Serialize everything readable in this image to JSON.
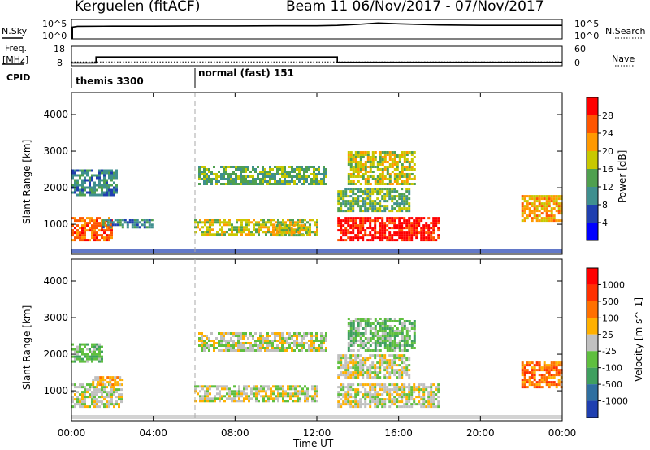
{
  "header": {
    "station": "Kerguelen (fitACF)",
    "beam_date": "Beam 11  06/Nov/2017 - 07/Nov/2017"
  },
  "panels": {
    "nsky": {
      "left_label": "N.Sky",
      "left_ticks": [
        "10^5",
        "10^0"
      ],
      "right_ticks": [
        "10^5",
        "10^0"
      ],
      "right_label": "N.Search"
    },
    "freq": {
      "left_label_1": "Freq.",
      "left_label_2": "[MHz]",
      "left_ticks": [
        "18",
        "8"
      ],
      "right_ticks": [
        "60",
        "0"
      ],
      "right_label": "Nave"
    },
    "cpid": {
      "label": "CPID",
      "segments": [
        {
          "text": "themis 3300",
          "start_hour": 0
        },
        {
          "text": "normal (fast) 151",
          "start_hour": 6
        }
      ]
    }
  },
  "chart_data": [
    {
      "type": "heatmap",
      "name": "power",
      "ylabel": "Slant Range [km]",
      "y_ticks": [
        "1000",
        "2000",
        "3000",
        "4000"
      ],
      "ylim_km": [
        180,
        4600
      ],
      "xlim_hours": [
        0,
        24
      ],
      "colorbar_label": "Power [dB]",
      "colorbar_ticks": [
        "4",
        "8",
        "12",
        "16",
        "20",
        "24",
        "28"
      ],
      "colorbar_colors": [
        "#0000ff",
        "#1f3fb0",
        "#3f8f8f",
        "#4fa04f",
        "#c8c800",
        "#ff9900",
        "#ff5500",
        "#ff0000"
      ],
      "features": [
        {
          "x0": 0.0,
          "x1": 2.0,
          "y0": 550,
          "y1": 1200,
          "level": 6
        },
        {
          "x0": 1.5,
          "x1": 4.0,
          "y0": 900,
          "y1": 1150,
          "level": 2
        },
        {
          "x0": 6.0,
          "x1": 12.0,
          "y0": 750,
          "y1": 1150,
          "level": 4
        },
        {
          "x0": 6.2,
          "x1": 12.5,
          "y0": 2100,
          "y1": 2600,
          "level": 3
        },
        {
          "x0": 0.0,
          "x1": 2.2,
          "y0": 1800,
          "y1": 2500,
          "level": 2
        },
        {
          "x0": 13.0,
          "x1": 18.0,
          "y0": 600,
          "y1": 1200,
          "level": 7
        },
        {
          "x0": 13.0,
          "x1": 16.5,
          "y0": 1400,
          "y1": 2000,
          "level": 3
        },
        {
          "x0": 13.5,
          "x1": 16.8,
          "y0": 2100,
          "y1": 3000,
          "level": 4
        },
        {
          "x0": 22.0,
          "x1": 24.0,
          "y0": 1100,
          "y1": 1800,
          "level": 5
        },
        {
          "x0": 10.0,
          "x1": 11.5,
          "y0": 700,
          "y1": 1000,
          "level": 4
        }
      ]
    },
    {
      "type": "heatmap",
      "name": "velocity",
      "ylabel": "Slant Range [km]",
      "y_ticks": [
        "1000",
        "2000",
        "3000",
        "4000"
      ],
      "ylim_km": [
        180,
        4600
      ],
      "xlim_hours": [
        0,
        24
      ],
      "xlabel": "Time UT",
      "x_ticks": [
        "00:00",
        "04:00",
        "08:00",
        "12:00",
        "16:00",
        "20:00",
        "00:00"
      ],
      "colorbar_label": "Velocity [m s^-1]",
      "colorbar_ticks": [
        "1000",
        "500",
        "100",
        "25",
        "-25",
        "-100",
        "-500",
        "-1000"
      ],
      "colorbar_colors": [
        "#1f3fb0",
        "#2f6fa0",
        "#3f9f5f",
        "#5fbf3f",
        "#c0c0c0",
        "#ffb000",
        "#ff7000",
        "#ff3000",
        "#ff0000"
      ],
      "features": [
        {
          "x0": 0.0,
          "x1": 2.5,
          "y0": 550,
          "y1": 1200,
          "level": 4
        },
        {
          "x0": 1.0,
          "x1": 2.5,
          "y0": 1200,
          "y1": 1400,
          "level": 5
        },
        {
          "x0": 6.0,
          "x1": 12.0,
          "y0": 750,
          "y1": 1150,
          "level": 4
        },
        {
          "x0": 6.2,
          "x1": 12.5,
          "y0": 2100,
          "y1": 2600,
          "level": 4
        },
        {
          "x0": 13.0,
          "x1": 18.0,
          "y0": 600,
          "y1": 1200,
          "level": 4
        },
        {
          "x0": 13.0,
          "x1": 16.5,
          "y0": 1400,
          "y1": 2000,
          "level": 4
        },
        {
          "x0": 13.5,
          "x1": 16.8,
          "y0": 2100,
          "y1": 3000,
          "level": 3
        },
        {
          "x0": 22.0,
          "x1": 24.0,
          "y0": 1100,
          "y1": 1800,
          "level": 6
        },
        {
          "x0": 0.0,
          "x1": 1.5,
          "y0": 1800,
          "y1": 2300,
          "level": 3
        }
      ]
    }
  ],
  "line_series": {
    "nsky_hours": [
      0,
      0.3,
      2,
      4,
      6,
      8,
      10,
      12,
      13,
      14,
      15,
      16,
      18,
      20,
      22,
      24
    ],
    "nsky_values": [
      0.6,
      0.65,
      0.66,
      0.66,
      0.67,
      0.67,
      0.68,
      0.68,
      0.7,
      0.75,
      0.82,
      0.78,
      0.72,
      0.7,
      0.7,
      0.7
    ],
    "freq_hours": [
      0,
      1.2,
      1.2,
      13,
      13,
      24
    ],
    "freq_values": [
      9.5,
      9.5,
      12.5,
      12.5,
      9.8,
      9.8
    ],
    "nave_level": 12
  }
}
